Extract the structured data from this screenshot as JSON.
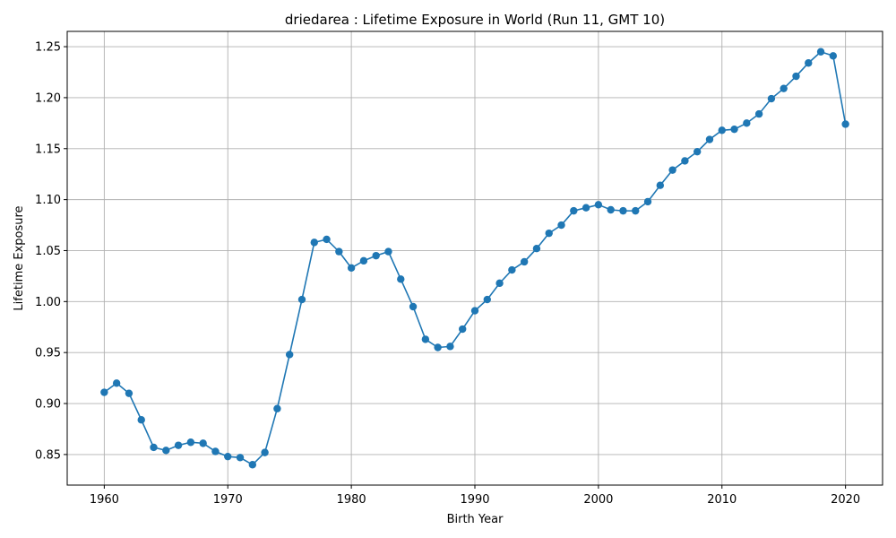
{
  "chart_data": {
    "type": "line",
    "title": "driedarea : Lifetime Exposure in World (Run 11, GMT 10)",
    "xlabel": "Birth Year",
    "ylabel": "Lifetime Exposure",
    "xlim": [
      1957,
      2023
    ],
    "ylim": [
      0.82,
      1.265
    ],
    "xticks": [
      1960,
      1970,
      1980,
      1990,
      2000,
      2010,
      2020
    ],
    "yticks": [
      0.85,
      0.9,
      0.95,
      1.0,
      1.05,
      1.1,
      1.15,
      1.2,
      1.25
    ],
    "ytick_labels": [
      "0.85",
      "0.90",
      "0.95",
      "1.00",
      "1.05",
      "1.10",
      "1.15",
      "1.20",
      "1.25"
    ],
    "grid": true,
    "color": "#1f77b4",
    "marker": "circle",
    "series": [
      {
        "x": [
          1960,
          1961,
          1962,
          1963,
          1964,
          1965,
          1966,
          1967,
          1968,
          1969,
          1970,
          1971,
          1972,
          1973,
          1974,
          1975,
          1976,
          1977,
          1978,
          1979,
          1980,
          1981,
          1982,
          1983,
          1984,
          1985,
          1986,
          1987,
          1988,
          1989,
          1990,
          1991,
          1992,
          1993,
          1994,
          1995,
          1996,
          1997,
          1998,
          1999,
          2000,
          2001,
          2002,
          2003,
          2004,
          2005,
          2006,
          2007,
          2008,
          2009,
          2010,
          2011,
          2012,
          2013,
          2014,
          2015,
          2016,
          2017,
          2018,
          2019,
          2020
        ],
        "values": [
          0.911,
          0.92,
          0.91,
          0.884,
          0.857,
          0.854,
          0.859,
          0.862,
          0.861,
          0.853,
          0.848,
          0.847,
          0.84,
          0.852,
          0.895,
          0.948,
          1.002,
          1.058,
          1.061,
          1.049,
          1.033,
          1.04,
          1.045,
          1.049,
          1.022,
          0.995,
          0.963,
          0.955,
          0.956,
          0.973,
          0.991,
          1.002,
          1.018,
          1.031,
          1.039,
          1.052,
          1.067,
          1.075,
          1.089,
          1.092,
          1.095,
          1.09,
          1.089,
          1.089,
          1.098,
          1.114,
          1.129,
          1.138,
          1.147,
          1.159,
          1.168,
          1.169,
          1.175,
          1.184,
          1.199,
          1.209,
          1.221,
          1.234,
          1.245,
          1.241,
          1.174
        ]
      }
    ]
  }
}
